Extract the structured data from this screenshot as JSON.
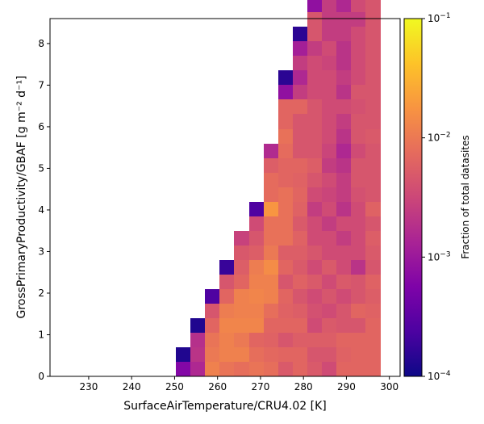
{
  "chart_data": {
    "type": "heatmap",
    "xlabel": "SurfaceAirTemperature/CRU4.02 [K]",
    "ylabel": "GrossPrimaryProductivity/GBAF [g m⁻² d⁻¹]",
    "colorbar_label": "Fraction of total datasites",
    "xlim": [
      221,
      302.5
    ],
    "ylim": [
      0,
      8.6
    ],
    "x_ticks": [
      230,
      240,
      250,
      260,
      270,
      280,
      290,
      300
    ],
    "y_ticks": [
      0,
      1,
      2,
      3,
      4,
      5,
      6,
      7,
      8
    ],
    "x_bin_width": 3.4,
    "y_bin_width": 0.35,
    "colormap": "plasma",
    "colorbar_scale": "log",
    "colorbar_range": [
      0.0001,
      0.1
    ],
    "colorbar_ticks": [
      {
        "value": 0.0001,
        "base": "10",
        "exp": "−4"
      },
      {
        "value": 0.001,
        "base": "10",
        "exp": "−3"
      },
      {
        "value": 0.01,
        "base": "10",
        "exp": "−2"
      },
      {
        "value": 0.1,
        "base": "10",
        "exp": "−1"
      }
    ],
    "grid": false,
    "column_x_start": 250.3,
    "columns": [
      [
        0.00062,
        0.00013
      ],
      [
        0.0015,
        0.002,
        0.0018,
        0.00013
      ],
      [
        0.012,
        0.01,
        0.009,
        0.0065,
        0.0045,
        0.00025
      ],
      [
        0.009,
        0.012,
        0.012,
        0.013,
        0.011,
        0.0065,
        0.0045,
        0.00018
      ],
      [
        0.008,
        0.012,
        0.01,
        0.013,
        0.012,
        0.012,
        0.0065,
        0.0055,
        0.0048,
        0.0028
      ],
      [
        0.009,
        0.008,
        0.0065,
        0.013,
        0.012,
        0.013,
        0.012,
        0.011,
        0.0055,
        0.0045,
        0.0035,
        0.00025
      ],
      [
        0.008,
        0.007,
        0.006,
        0.0065,
        0.008,
        0.012,
        0.012,
        0.015,
        0.01,
        0.0085,
        0.0085,
        0.018,
        0.0075,
        0.0075,
        0.0055,
        0.0016
      ],
      [
        0.005,
        0.0065,
        0.0045,
        0.0065,
        0.006,
        0.0065,
        0.0045,
        0.0065,
        0.0055,
        0.0085,
        0.0085,
        0.0085,
        0.0085,
        0.0065,
        0.0065,
        0.0075,
        0.0085,
        0.0065,
        0.0065,
        0.0008,
        0.00015
      ],
      [
        0.0065,
        0.0065,
        0.0055,
        0.0065,
        0.0055,
        0.0045,
        0.006,
        0.005,
        0.0055,
        0.006,
        0.005,
        0.006,
        0.0065,
        0.006,
        0.0065,
        0.0045,
        0.0045,
        0.0045,
        0.0065,
        0.0025,
        0.0015,
        0.0025,
        0.0012,
        0.00015
      ],
      [
        0.005,
        0.0045,
        0.0055,
        0.0035,
        0.004,
        0.0035,
        0.005,
        0.0035,
        0.0045,
        0.0035,
        0.0035,
        0.0025,
        0.0035,
        0.0045,
        0.0055,
        0.0045,
        0.0045,
        0.0045,
        0.0045,
        0.0035,
        0.0035,
        0.0035,
        0.0025,
        0.0045,
        0.0045,
        0.0008,
        0.0008,
        0.00025,
        0.00015
      ],
      [
        0.0035,
        0.0045,
        0.0055,
        0.005,
        0.0035,
        0.0045,
        0.0035,
        0.005,
        0.0035,
        0.0035,
        0.0025,
        0.0035,
        0.003,
        0.0035,
        0.0025,
        0.003,
        0.0035,
        0.0035,
        0.0035,
        0.0035,
        0.0035,
        0.003,
        0.0035,
        0.0025,
        0.0025,
        0.0025,
        0.002,
        0.0012,
        0.0012,
        0.0012,
        0.0025,
        0.0015,
        0.0002
      ],
      [
        0.0065,
        0.006,
        0.0065,
        0.0045,
        0.0045,
        0.0035,
        0.005,
        0.0035,
        0.0035,
        0.0025,
        0.0035,
        0.002,
        0.0025,
        0.0025,
        0.002,
        0.0015,
        0.002,
        0.0025,
        0.0035,
        0.002,
        0.0025,
        0.002,
        0.002,
        0.0025,
        0.0025,
        0.0015,
        0.0015,
        0.0025,
        0.0015,
        0.0015,
        0.002,
        0.0015,
        0.0025,
        0.0012,
        0.0025
      ],
      [
        0.0065,
        0.0065,
        0.0065,
        0.0045,
        0.0065,
        0.0045,
        0.0045,
        0.002,
        0.0035,
        0.0035,
        0.0035,
        0.0035,
        0.004,
        0.0045,
        0.0045,
        0.0035,
        0.0045,
        0.0045,
        0.004,
        0.0045,
        0.0035,
        0.0035,
        0.0035,
        0.0035,
        0.0025,
        0.0035,
        0.0035,
        0.0025,
        0.0025,
        0.0035,
        0.0025,
        0.0035,
        0.003,
        0.005,
        0.0055
      ],
      [
        0.0065,
        0.0065,
        0.0065,
        0.0065,
        0.006,
        0.0055,
        0.006,
        0.0045,
        0.005,
        0.0055,
        0.0045,
        0.006,
        0.0045,
        0.0045,
        0.0045,
        0.0045,
        0.005,
        0.0045,
        0.0045,
        0.0045,
        0.0045,
        0.0045,
        0.0045,
        0.0045,
        0.0045,
        0.0045,
        0.004,
        0.0035,
        0.0035,
        0.004,
        0.0035,
        0.0035,
        0.0035,
        0.005,
        0.0065
      ]
    ]
  }
}
